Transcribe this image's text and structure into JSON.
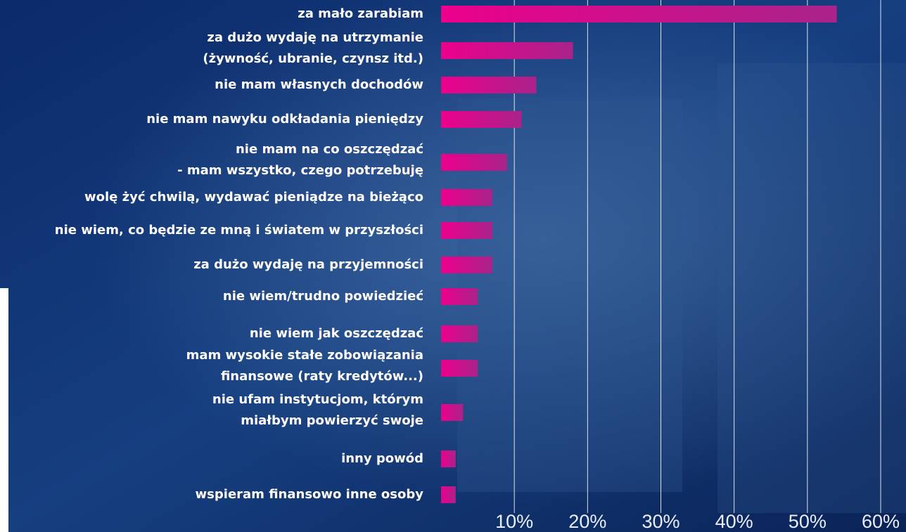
{
  "chart_data": {
    "type": "hbar",
    "categories": [
      [
        "za mało zarabiam"
      ],
      [
        "za dużo wydaję na utrzymanie",
        "(żywność, ubranie, czynsz itd.)"
      ],
      [
        "nie mam własnych dochodów"
      ],
      [
        "nie mam nawyku odkładania pieniędzy"
      ],
      [
        "nie mam na co oszczędzać",
        "- mam wszystko, czego potrzebuję"
      ],
      [
        "wolę żyć chwilą, wydawać pieniądze na bieżąco"
      ],
      [
        "nie wiem, co będzie ze mną i światem w przyszłości"
      ],
      [
        "za dużo wydaję na przyjemności"
      ],
      [
        "nie wiem/trudno powiedzieć"
      ],
      [
        "nie wiem jak oszczędzać"
      ],
      [
        "mam wysokie stałe zobowiązania",
        "finansowe (raty kredytów...)"
      ],
      [
        "nie ufam instytucjom, którym",
        "miałbym powierzyć swoje"
      ],
      [
        "inny powód"
      ],
      [
        "wspieram finansowo inne osoby"
      ]
    ],
    "values": [
      54,
      18,
      13,
      11,
      9,
      7,
      7,
      7,
      5,
      5,
      5,
      3,
      2,
      2
    ],
    "colors": [
      "#ec008c",
      "#a8238a"
    ],
    "xlim": [
      0,
      60
    ],
    "xticks": [
      {
        "value": 10,
        "label": "10%"
      },
      {
        "value": 20,
        "label": "20%"
      },
      {
        "value": 30,
        "label": "30%"
      },
      {
        "value": 40,
        "label": "40%"
      },
      {
        "value": 50,
        "label": "50%"
      },
      {
        "value": 60,
        "label": "60%"
      }
    ],
    "grid": true
  }
}
